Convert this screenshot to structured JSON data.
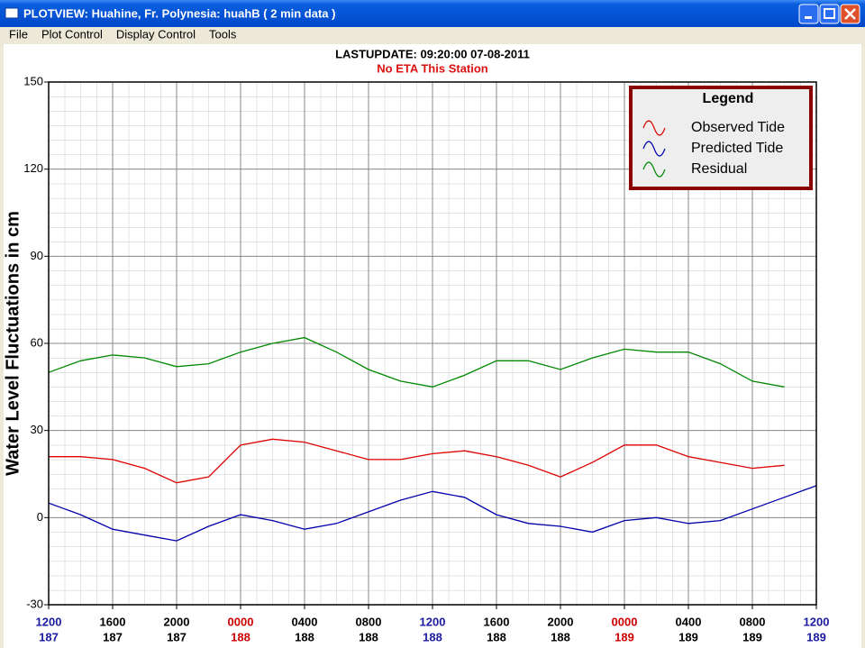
{
  "window": {
    "title": "PLOTVIEW:   Huahine, Fr. Polynesia: huahB (  2 min data )",
    "menu": [
      "File",
      "Plot Control",
      "Display Control",
      "Tools"
    ]
  },
  "chart_data": {
    "type": "line",
    "title": "LASTUPDATE: 09:20:00  07-08-2011",
    "subtitle": "No ETA This Station",
    "y_label": "Water Level Fluctuations in cm",
    "legend_title": "Legend",
    "legend": "upper right",
    "grid": true,
    "x": [
      0,
      2,
      4,
      6,
      8,
      10,
      12,
      14,
      16,
      18,
      20,
      22,
      24,
      26,
      28,
      30,
      32,
      34,
      36,
      38,
      40,
      42,
      44,
      46,
      48
    ],
    "xlim": [
      0,
      48
    ],
    "xticks": [
      {
        "value": 0,
        "label": "1200"
      },
      {
        "value": 4,
        "label": "1600"
      },
      {
        "value": 8,
        "label": "2000"
      },
      {
        "value": 12,
        "label": "0000"
      },
      {
        "value": 16,
        "label": "0400"
      },
      {
        "value": 20,
        "label": "0800"
      },
      {
        "value": 24,
        "label": "1200"
      },
      {
        "value": 28,
        "label": "1600"
      },
      {
        "value": 32,
        "label": "2000"
      },
      {
        "value": 36,
        "label": "0000"
      },
      {
        "value": 40,
        "label": "0400"
      },
      {
        "value": 44,
        "label": "0800"
      },
      {
        "value": 48,
        "label": "1200"
      }
    ],
    "xtick_days": [
      "187",
      "187",
      "187",
      "188",
      "188",
      "188",
      "188",
      "188",
      "188",
      "189",
      "189",
      "189",
      "189"
    ],
    "xtick_colors": [
      "#1a1aa0",
      "#000000",
      "#000000",
      "#cc0000",
      "#000000",
      "#000000",
      "#1a1aa0",
      "#000000",
      "#000000",
      "#cc0000",
      "#000000",
      "#000000",
      "#1a1aa0"
    ],
    "ylim": [
      -30,
      150
    ],
    "yticks": [
      -30,
      0,
      30,
      60,
      90,
      120,
      150
    ],
    "series": [
      {
        "name": "Observed Tide",
        "color": "#dd0000",
        "values": [
          21,
          21,
          20,
          17,
          12,
          14,
          25,
          27,
          26,
          23,
          20,
          20,
          22,
          23,
          21,
          18,
          14,
          19,
          25,
          25,
          21,
          19,
          17,
          18,
          null
        ]
      },
      {
        "name": "Predicted Tide",
        "color": "#0000aa",
        "values": [
          5,
          1,
          -4,
          -6,
          -8,
          -3,
          1,
          -1,
          -4,
          -2,
          2,
          6,
          9,
          7,
          1,
          -2,
          -3,
          -5,
          -1,
          0,
          -2,
          -1,
          3,
          7,
          11
        ]
      },
      {
        "name": "Residual",
        "color": "#008800",
        "values": [
          50,
          54,
          56,
          55,
          52,
          53,
          57,
          60,
          62,
          57,
          51,
          47,
          45,
          49,
          54,
          54,
          51,
          55,
          58,
          57,
          57,
          53,
          47,
          45,
          null
        ]
      }
    ]
  }
}
